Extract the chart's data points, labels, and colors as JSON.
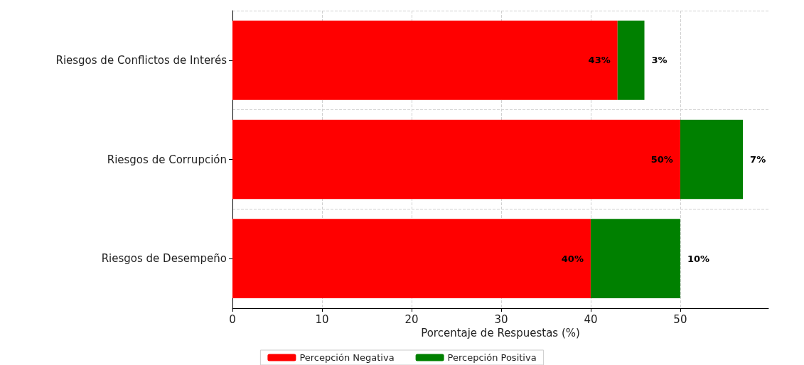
{
  "chart_data": {
    "type": "bar",
    "orientation": "horizontal",
    "stacked": true,
    "categories": [
      "Riesgos de Conflictos de Interés",
      "Riesgos de Corrupción",
      "Riesgos de Desempeño"
    ],
    "series": [
      {
        "name": "Percepción Negativa",
        "color": "#ff0000",
        "values": [
          43,
          50,
          40
        ],
        "value_labels": [
          "43%",
          "50%",
          "40%"
        ]
      },
      {
        "name": "Percepción Positiva",
        "color": "#008000",
        "values": [
          3,
          7,
          10
        ],
        "value_labels": [
          "3%",
          "7%",
          "10%"
        ]
      }
    ],
    "xlabel": "Porcentaje de Respuestas (%)",
    "xlim": [
      0,
      59.85
    ],
    "xticks": [
      0,
      10,
      20,
      30,
      40,
      50
    ],
    "grid": true,
    "legend": "bottom"
  }
}
